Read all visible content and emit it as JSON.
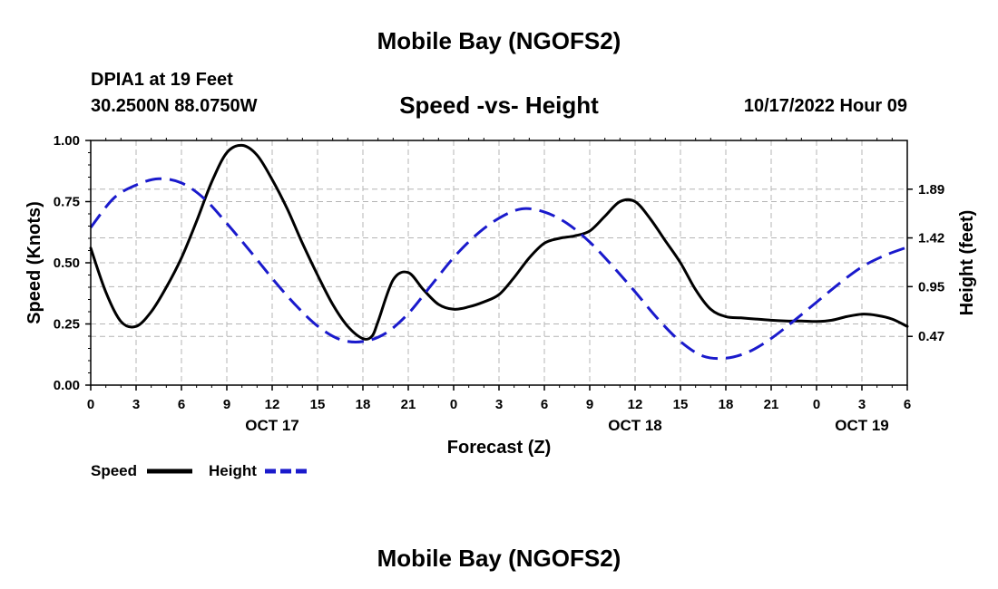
{
  "header": {
    "title": "Mobile Bay (NGOFS2)",
    "station": "DPIA1 at 19 Feet",
    "coords": "30.2500N  88.0750W",
    "subtitle": "Speed -vs- Height",
    "datetime": "10/17/2022 Hour 09"
  },
  "footer": {
    "title": "Mobile Bay (NGOFS2)"
  },
  "chart_data": {
    "type": "line",
    "title": "Speed -vs- Height",
    "xlabel": "Forecast (Z)",
    "ylabel": "Speed (Knots)",
    "y2label": "Height (feet)",
    "xlim": [
      0,
      54
    ],
    "ylim": [
      0,
      1
    ],
    "y2lim": [
      0,
      2.36
    ],
    "grid": true,
    "x_ticks": [
      {
        "h": 0,
        "label": "0"
      },
      {
        "h": 3,
        "label": "3"
      },
      {
        "h": 6,
        "label": "6"
      },
      {
        "h": 9,
        "label": "9"
      },
      {
        "h": 12,
        "label": "12"
      },
      {
        "h": 15,
        "label": "15"
      },
      {
        "h": 18,
        "label": "18"
      },
      {
        "h": 21,
        "label": "21"
      },
      {
        "h": 24,
        "label": "0"
      },
      {
        "h": 27,
        "label": "3"
      },
      {
        "h": 30,
        "label": "6"
      },
      {
        "h": 33,
        "label": "9"
      },
      {
        "h": 36,
        "label": "12"
      },
      {
        "h": 39,
        "label": "15"
      },
      {
        "h": 42,
        "label": "18"
      },
      {
        "h": 45,
        "label": "21"
      },
      {
        "h": 48,
        "label": "0"
      },
      {
        "h": 51,
        "label": "3"
      },
      {
        "h": 54,
        "label": "6"
      }
    ],
    "day_labels": [
      {
        "h": 12,
        "label": "OCT 17"
      },
      {
        "h": 36,
        "label": "OCT 18"
      },
      {
        "h": 51,
        "label": "OCT 19"
      }
    ],
    "y_ticks": [
      {
        "v": 0,
        "label": "0.00"
      },
      {
        "v": 0.25,
        "label": "0.25"
      },
      {
        "v": 0.5,
        "label": "0.50"
      },
      {
        "v": 0.75,
        "label": "0.75"
      },
      {
        "v": 1,
        "label": "1.00"
      }
    ],
    "y2_ticks": [
      {
        "v": 0.47,
        "label": "0.47"
      },
      {
        "v": 0.95,
        "label": "0.95"
      },
      {
        "v": 1.42,
        "label": "1.42"
      },
      {
        "v": 1.89,
        "label": "1.89"
      }
    ],
    "series": [
      {
        "name": "Speed",
        "axis": "left",
        "color": "#000000",
        "dash": "solid",
        "x": [
          0,
          1,
          2,
          3,
          4,
          5,
          6,
          7,
          8,
          9,
          10,
          11,
          12,
          13,
          14,
          15,
          16,
          17,
          18,
          18.6,
          19,
          20,
          21,
          22,
          23,
          24,
          25,
          26,
          27,
          28,
          29,
          30,
          31,
          32,
          33,
          34,
          35,
          36,
          37,
          38,
          39,
          40,
          41,
          42,
          43,
          44,
          45,
          46,
          47,
          48,
          49,
          50,
          51,
          52,
          53,
          54
        ],
        "values": [
          0.56,
          0.38,
          0.26,
          0.24,
          0.3,
          0.4,
          0.52,
          0.67,
          0.83,
          0.95,
          0.98,
          0.94,
          0.84,
          0.72,
          0.58,
          0.45,
          0.33,
          0.24,
          0.19,
          0.2,
          0.26,
          0.43,
          0.46,
          0.39,
          0.33,
          0.31,
          0.32,
          0.34,
          0.37,
          0.44,
          0.52,
          0.58,
          0.6,
          0.61,
          0.63,
          0.69,
          0.75,
          0.75,
          0.68,
          0.59,
          0.5,
          0.39,
          0.31,
          0.28,
          0.275,
          0.27,
          0.265,
          0.262,
          0.262,
          0.26,
          0.265,
          0.28,
          0.29,
          0.285,
          0.27,
          0.24
        ]
      },
      {
        "name": "Height",
        "axis": "right",
        "color": "#1a1acc",
        "dash": "dashed",
        "x": [
          0,
          1.5,
          3,
          4.5,
          6,
          7.5,
          9,
          10.5,
          12,
          13.5,
          15,
          16.5,
          18,
          19.5,
          21,
          22.5,
          24,
          25.5,
          27,
          28.5,
          30,
          31.5,
          33,
          34.5,
          36,
          37.5,
          39,
          40.5,
          42,
          43.5,
          45,
          46.5,
          48,
          49.5,
          51,
          52.5,
          54
        ],
        "values": [
          1.52,
          1.8,
          1.93,
          1.99,
          1.95,
          1.8,
          1.56,
          1.3,
          1.03,
          0.78,
          0.57,
          0.44,
          0.42,
          0.5,
          0.69,
          0.96,
          1.23,
          1.45,
          1.61,
          1.7,
          1.67,
          1.56,
          1.38,
          1.15,
          0.9,
          0.64,
          0.42,
          0.28,
          0.26,
          0.32,
          0.45,
          0.62,
          0.8,
          0.98,
          1.14,
          1.25,
          1.33
        ]
      }
    ],
    "legend": {
      "position": "bottom-left",
      "speed_label": "Speed",
      "height_label": "Height"
    }
  }
}
